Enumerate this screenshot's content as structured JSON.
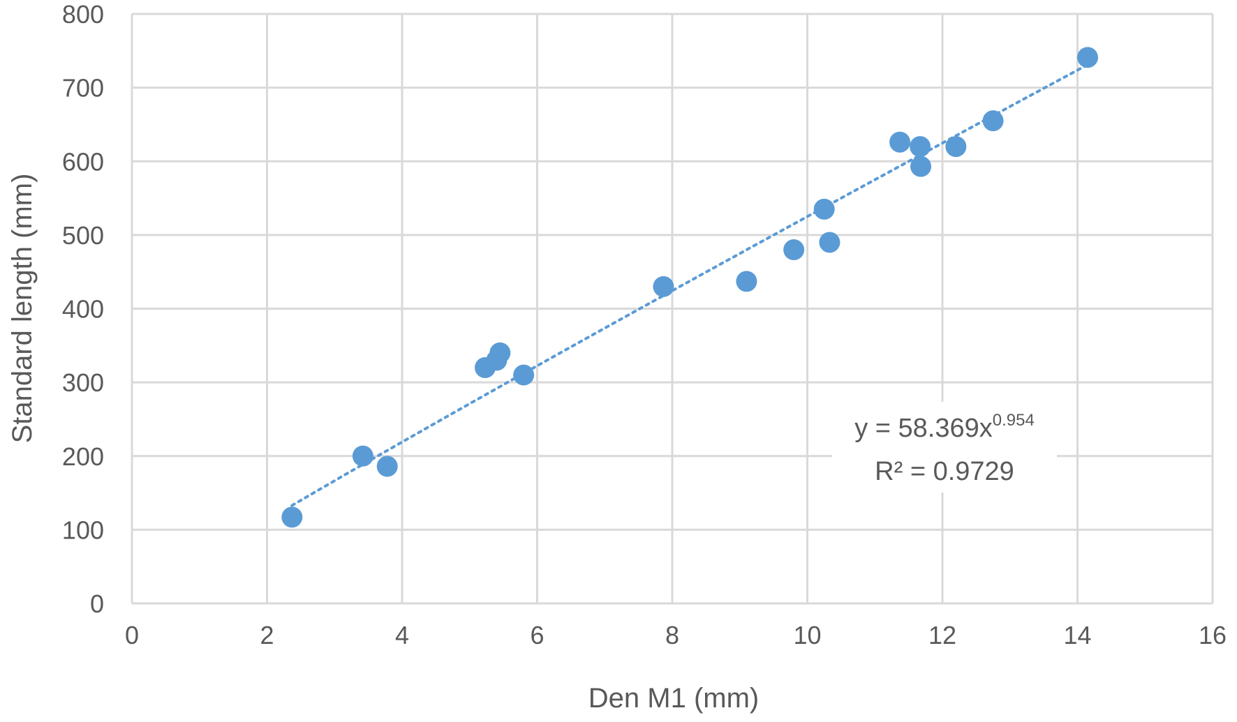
{
  "chart_data": {
    "type": "scatter",
    "title": "",
    "xlabel": "Den M1 (mm)",
    "ylabel": "Standard length (mm)",
    "xlim": [
      0,
      16
    ],
    "ylim": [
      0,
      800
    ],
    "x_ticks": [
      0,
      2,
      4,
      6,
      8,
      10,
      12,
      14,
      16
    ],
    "y_ticks": [
      0,
      100,
      200,
      300,
      400,
      500,
      600,
      700,
      800
    ],
    "x_tick_labels": [
      "0",
      "2",
      "4",
      "6",
      "8",
      "10",
      "12",
      "14",
      "16"
    ],
    "y_tick_labels": [
      "0",
      "100",
      "200",
      "300",
      "400",
      "500",
      "600",
      "700",
      "800"
    ],
    "grid": true,
    "marker_color": "#5b9bd5",
    "series": [
      {
        "points": [
          {
            "x": 2.37,
            "y": 117
          },
          {
            "x": 3.42,
            "y": 200
          },
          {
            "x": 3.78,
            "y": 186
          },
          {
            "x": 5.23,
            "y": 320
          },
          {
            "x": 5.4,
            "y": 330
          },
          {
            "x": 5.45,
            "y": 340
          },
          {
            "x": 5.8,
            "y": 310
          },
          {
            "x": 7.87,
            "y": 430
          },
          {
            "x": 9.1,
            "y": 437
          },
          {
            "x": 9.8,
            "y": 480
          },
          {
            "x": 10.25,
            "y": 535
          },
          {
            "x": 10.33,
            "y": 490
          },
          {
            "x": 11.37,
            "y": 626
          },
          {
            "x": 11.67,
            "y": 620
          },
          {
            "x": 11.68,
            "y": 593
          },
          {
            "x": 12.2,
            "y": 620
          },
          {
            "x": 12.75,
            "y": 655
          },
          {
            "x": 14.15,
            "y": 741
          }
        ]
      }
    ],
    "trendline": {
      "type": "power",
      "coefficient": 58.369,
      "exponent": 0.954,
      "x_range": [
        2.37,
        14.15
      ],
      "style": "dotted",
      "equation_prefix": "y = 58.369x",
      "equation_exponent": "0.954",
      "r_squared_label": "R² = 0.9729"
    }
  }
}
